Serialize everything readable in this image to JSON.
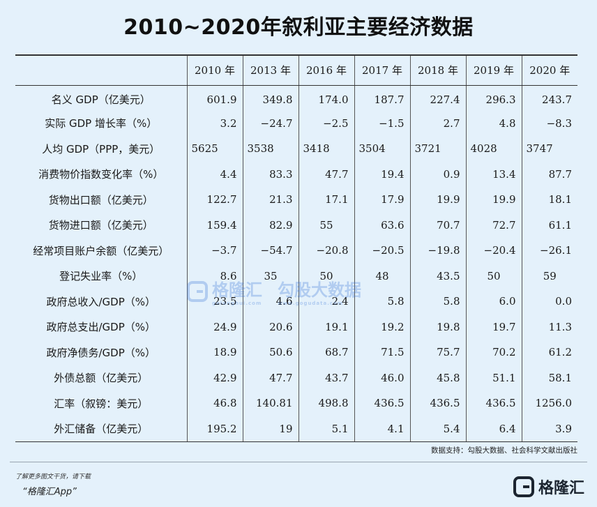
{
  "title": "2010~2020年叙利亚主要经济数据",
  "table": {
    "headers": [
      "",
      "2010 年",
      "2013 年",
      "2016 年",
      "2017 年",
      "2018 年",
      "2019 年",
      "2020 年"
    ],
    "rows": [
      {
        "label": "名义 GDP（亿美元）",
        "values": [
          "601.9",
          "349.8",
          "174.0",
          "187.7",
          "227.4",
          "296.3",
          "243.7"
        ]
      },
      {
        "label": "实际 GDP 增长率（%）",
        "values": [
          "3.2",
          "−24.7",
          "−2.5",
          "−1.5",
          "2.7",
          "4.8",
          "−8.3"
        ]
      },
      {
        "label": "人均 GDP（PPP，美元）",
        "values": [
          "5625",
          "3538",
          "3418",
          "3504",
          "3721",
          "4028",
          "3747"
        ]
      },
      {
        "label": "消费物价指数变化率（%）",
        "values": [
          "4.4",
          "83.3",
          "47.7",
          "19.4",
          "0.9",
          "13.4",
          "87.7"
        ]
      },
      {
        "label": "货物出口额（亿美元）",
        "values": [
          "122.7",
          "21.3",
          "17.1",
          "17.9",
          "19.9",
          "19.9",
          "18.1"
        ]
      },
      {
        "label": "货物进口额（亿美元）",
        "values": [
          "159.4",
          "82.9",
          "55",
          "63.6",
          "70.7",
          "72.7",
          "61.1"
        ]
      },
      {
        "label": "经常项目账户余额（亿美元）",
        "values": [
          "−3.7",
          "−54.7",
          "−20.8",
          "−20.5",
          "−19.8",
          "−20.4",
          "−26.1"
        ]
      },
      {
        "label": "登记失业率（%）",
        "values": [
          "8.6",
          "35",
          "50",
          "48",
          "43.5",
          "50",
          "59"
        ]
      },
      {
        "label": "政府总收入/GDP（%）",
        "values": [
          "23.5",
          "4.6",
          "2.4",
          "5.8",
          "5.8",
          "6.0",
          "0.0"
        ]
      },
      {
        "label": "政府总支出/GDP（%）",
        "values": [
          "24.9",
          "20.6",
          "19.1",
          "19.2",
          "19.8",
          "19.7",
          "11.3"
        ]
      },
      {
        "label": "政府净债务/GDP（%）",
        "values": [
          "18.9",
          "50.6",
          "68.7",
          "71.5",
          "75.7",
          "70.2",
          "61.2"
        ]
      },
      {
        "label": "外债总额（亿美元）",
        "values": [
          "42.9",
          "47.7",
          "43.7",
          "46.0",
          "45.8",
          "51.1",
          "58.1"
        ]
      },
      {
        "label": "汇率（叙镑：美元）",
        "values": [
          "46.8",
          "140.81",
          "498.8",
          "436.5",
          "436.5",
          "436.5",
          "1256.0"
        ]
      },
      {
        "label": "外汇储备（亿美元）",
        "values": [
          "195.2",
          "19",
          "5.1",
          "4.1",
          "5.4",
          "6.4",
          "3.9"
        ]
      }
    ]
  },
  "source": "数据支持：勾股大数据、社会科学文献出版社",
  "watermark": {
    "brand": "格隆汇",
    "brand2": "勾股大数据",
    "url1": "gelonghui.com",
    "url2": "www.gogudata.com"
  },
  "footer": {
    "promo_line": "了解更多图文干货，请下载",
    "app_name": "“格隆汇App”",
    "brand": "格隆汇",
    "accent_color": "#2f6fd6",
    "background_color": "#e4f1fb"
  }
}
